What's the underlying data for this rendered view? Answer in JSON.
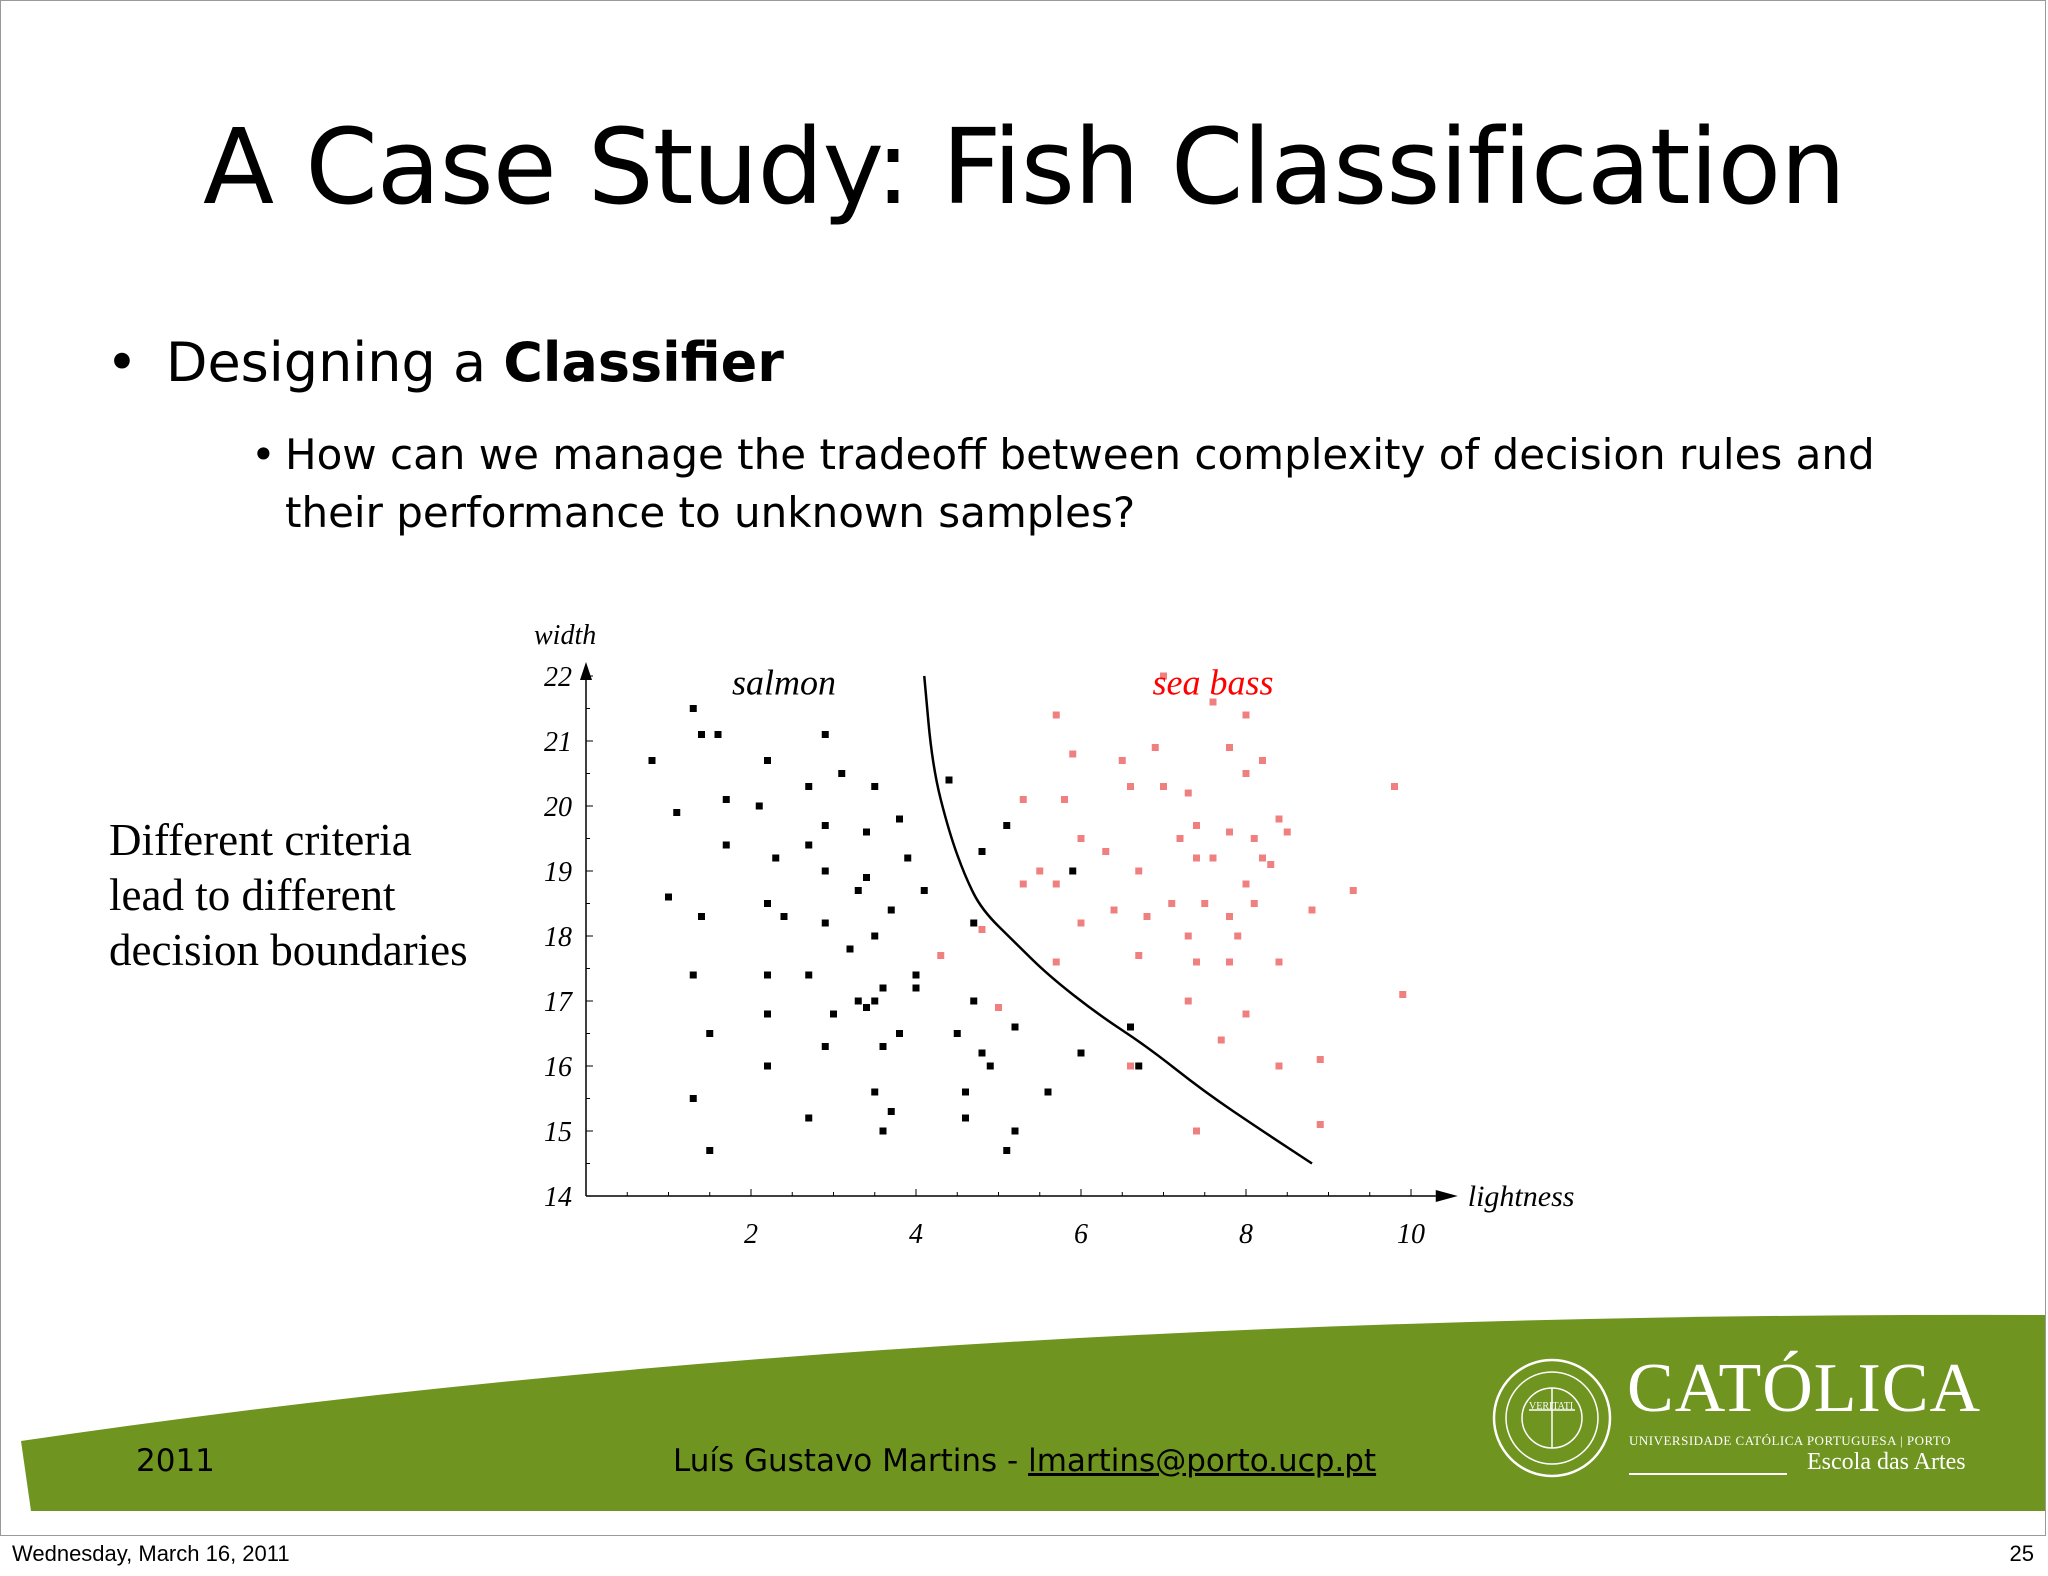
{
  "slide": {
    "title": "A Case Study: Fish Classification",
    "bullet1": {
      "dot": "•",
      "prefix": "Designing a ",
      "bold": "Classifier"
    },
    "bullet2": {
      "dot": "•",
      "text": "How can we manage the tradeoff between complexity of decision rules and their performance to unknown samples?"
    },
    "side_note": "Different criteria lead to different decision boundaries"
  },
  "footer": {
    "year": "2011",
    "author": "Luís Gustavo Martins - ",
    "email": "lmartins@porto.ucp.pt",
    "logo_name": "CATÓLICA",
    "logo_sub": "UNIVERSIDADE CATÓLICA PORTUGUESA | PORTO",
    "logo_school": "Escola das Artes",
    "seal_text": "VERITATI",
    "band_color": "#6f9420",
    "seal_icon": "university-seal-icon"
  },
  "print": {
    "date": "Wednesday, March 16, 2011",
    "page": "25"
  },
  "chart_data": {
    "type": "scatter",
    "xlabel": "lightness",
    "ylabel": "width",
    "xlim": [
      0,
      10.3
    ],
    "ylim": [
      14,
      22
    ],
    "xticks": [
      2,
      4,
      6,
      8,
      10
    ],
    "yticks": [
      14,
      15,
      16,
      17,
      18,
      19,
      20,
      21,
      22
    ],
    "grid": false,
    "annotations": [
      {
        "text": "salmon",
        "x": 2.4,
        "y": 21.9,
        "color": "#000000"
      },
      {
        "text": "sea bass",
        "x": 7.6,
        "y": 21.9,
        "color": "#ff0000"
      }
    ],
    "series": [
      {
        "name": "salmon",
        "color": "#000000",
        "points": [
          [
            0.8,
            20.7
          ],
          [
            1.3,
            21.5
          ],
          [
            1.4,
            21.1
          ],
          [
            1.6,
            21.1
          ],
          [
            1.1,
            19.9
          ],
          [
            1.7,
            20.1
          ],
          [
            1.7,
            19.4
          ],
          [
            1.0,
            18.6
          ],
          [
            1.4,
            18.3
          ],
          [
            1.3,
            17.4
          ],
          [
            1.5,
            16.5
          ],
          [
            1.3,
            15.5
          ],
          [
            1.5,
            14.7
          ],
          [
            2.2,
            20.7
          ],
          [
            2.1,
            20.0
          ],
          [
            2.3,
            19.2
          ],
          [
            2.2,
            18.5
          ],
          [
            2.4,
            18.3
          ],
          [
            2.2,
            17.4
          ],
          [
            2.2,
            16.8
          ],
          [
            2.2,
            16.0
          ],
          [
            2.7,
            15.2
          ],
          [
            2.9,
            21.1
          ],
          [
            2.7,
            20.3
          ],
          [
            3.1,
            20.5
          ],
          [
            2.9,
            19.7
          ],
          [
            2.7,
            19.4
          ],
          [
            2.9,
            19.0
          ],
          [
            2.9,
            18.2
          ],
          [
            2.7,
            17.4
          ],
          [
            3.0,
            16.8
          ],
          [
            2.9,
            16.3
          ],
          [
            3.2,
            17.8
          ],
          [
            3.3,
            18.7
          ],
          [
            3.4,
            18.9
          ],
          [
            3.4,
            19.6
          ],
          [
            3.5,
            20.3
          ],
          [
            3.8,
            19.8
          ],
          [
            3.9,
            19.2
          ],
          [
            3.7,
            18.4
          ],
          [
            3.5,
            18.0
          ],
          [
            3.3,
            17.0
          ],
          [
            3.4,
            16.9
          ],
          [
            3.6,
            17.2
          ],
          [
            3.5,
            17.0
          ],
          [
            3.6,
            16.3
          ],
          [
            3.5,
            15.6
          ],
          [
            3.7,
            15.3
          ],
          [
            3.6,
            15.0
          ],
          [
            3.8,
            16.5
          ],
          [
            4.0,
            17.2
          ],
          [
            4.0,
            17.4
          ],
          [
            4.1,
            18.7
          ],
          [
            4.4,
            20.4
          ],
          [
            4.7,
            18.2
          ],
          [
            4.8,
            19.3
          ],
          [
            4.7,
            17.0
          ],
          [
            4.5,
            16.5
          ],
          [
            4.6,
            15.6
          ],
          [
            4.6,
            15.2
          ],
          [
            4.8,
            16.2
          ],
          [
            4.9,
            16.0
          ],
          [
            5.1,
            19.7
          ],
          [
            5.2,
            16.6
          ],
          [
            5.1,
            14.7
          ],
          [
            5.2,
            15.0
          ],
          [
            5.6,
            15.6
          ],
          [
            5.9,
            19.0
          ],
          [
            6.0,
            16.2
          ],
          [
            6.6,
            16.6
          ],
          [
            6.7,
            16.0
          ]
        ]
      },
      {
        "name": "sea bass",
        "color": "#f08080",
        "points": [
          [
            7.0,
            22.0
          ],
          [
            7.6,
            21.6
          ],
          [
            8.0,
            21.4
          ],
          [
            5.7,
            21.4
          ],
          [
            5.9,
            20.8
          ],
          [
            6.5,
            20.7
          ],
          [
            6.9,
            20.9
          ],
          [
            7.8,
            20.9
          ],
          [
            8.2,
            20.7
          ],
          [
            6.6,
            20.3
          ],
          [
            7.0,
            20.3
          ],
          [
            8.0,
            20.5
          ],
          [
            9.8,
            20.3
          ],
          [
            5.3,
            20.1
          ],
          [
            5.8,
            20.1
          ],
          [
            7.3,
            20.2
          ],
          [
            8.4,
            19.8
          ],
          [
            7.4,
            19.7
          ],
          [
            7.8,
            19.6
          ],
          [
            8.5,
            19.6
          ],
          [
            8.1,
            19.5
          ],
          [
            6.0,
            19.5
          ],
          [
            7.2,
            19.5
          ],
          [
            5.5,
            19.0
          ],
          [
            6.3,
            19.3
          ],
          [
            6.7,
            19.0
          ],
          [
            7.4,
            19.2
          ],
          [
            7.6,
            19.2
          ],
          [
            8.2,
            19.2
          ],
          [
            8.3,
            19.1
          ],
          [
            8.0,
            18.8
          ],
          [
            5.3,
            18.8
          ],
          [
            5.7,
            18.8
          ],
          [
            9.3,
            18.7
          ],
          [
            6.4,
            18.4
          ],
          [
            6.8,
            18.3
          ],
          [
            7.1,
            18.5
          ],
          [
            7.5,
            18.5
          ],
          [
            7.8,
            18.3
          ],
          [
            8.1,
            18.5
          ],
          [
            8.8,
            18.4
          ],
          [
            6.0,
            18.2
          ],
          [
            7.3,
            18.0
          ],
          [
            7.9,
            18.0
          ],
          [
            4.8,
            18.1
          ],
          [
            4.3,
            17.7
          ],
          [
            5.7,
            17.6
          ],
          [
            6.7,
            17.7
          ],
          [
            7.4,
            17.6
          ],
          [
            7.8,
            17.6
          ],
          [
            8.4,
            17.6
          ],
          [
            5.0,
            16.9
          ],
          [
            6.6,
            16.0
          ],
          [
            8.0,
            16.8
          ],
          [
            7.3,
            17.0
          ],
          [
            9.9,
            17.1
          ],
          [
            7.7,
            16.4
          ],
          [
            8.4,
            16.0
          ],
          [
            8.9,
            16.1
          ],
          [
            7.4,
            15.0
          ],
          [
            8.9,
            15.1
          ]
        ]
      }
    ],
    "decision_boundary": {
      "points": [
        [
          4.1,
          22.0
        ],
        [
          4.2,
          20.6
        ],
        [
          4.4,
          19.6
        ],
        [
          4.6,
          18.9
        ],
        [
          4.8,
          18.4
        ],
        [
          5.2,
          17.9
        ],
        [
          5.6,
          17.4
        ],
        [
          6.2,
          16.8
        ],
        [
          6.8,
          16.3
        ],
        [
          7.5,
          15.6
        ],
        [
          8.2,
          15.0
        ],
        [
          8.8,
          14.5
        ]
      ]
    }
  }
}
